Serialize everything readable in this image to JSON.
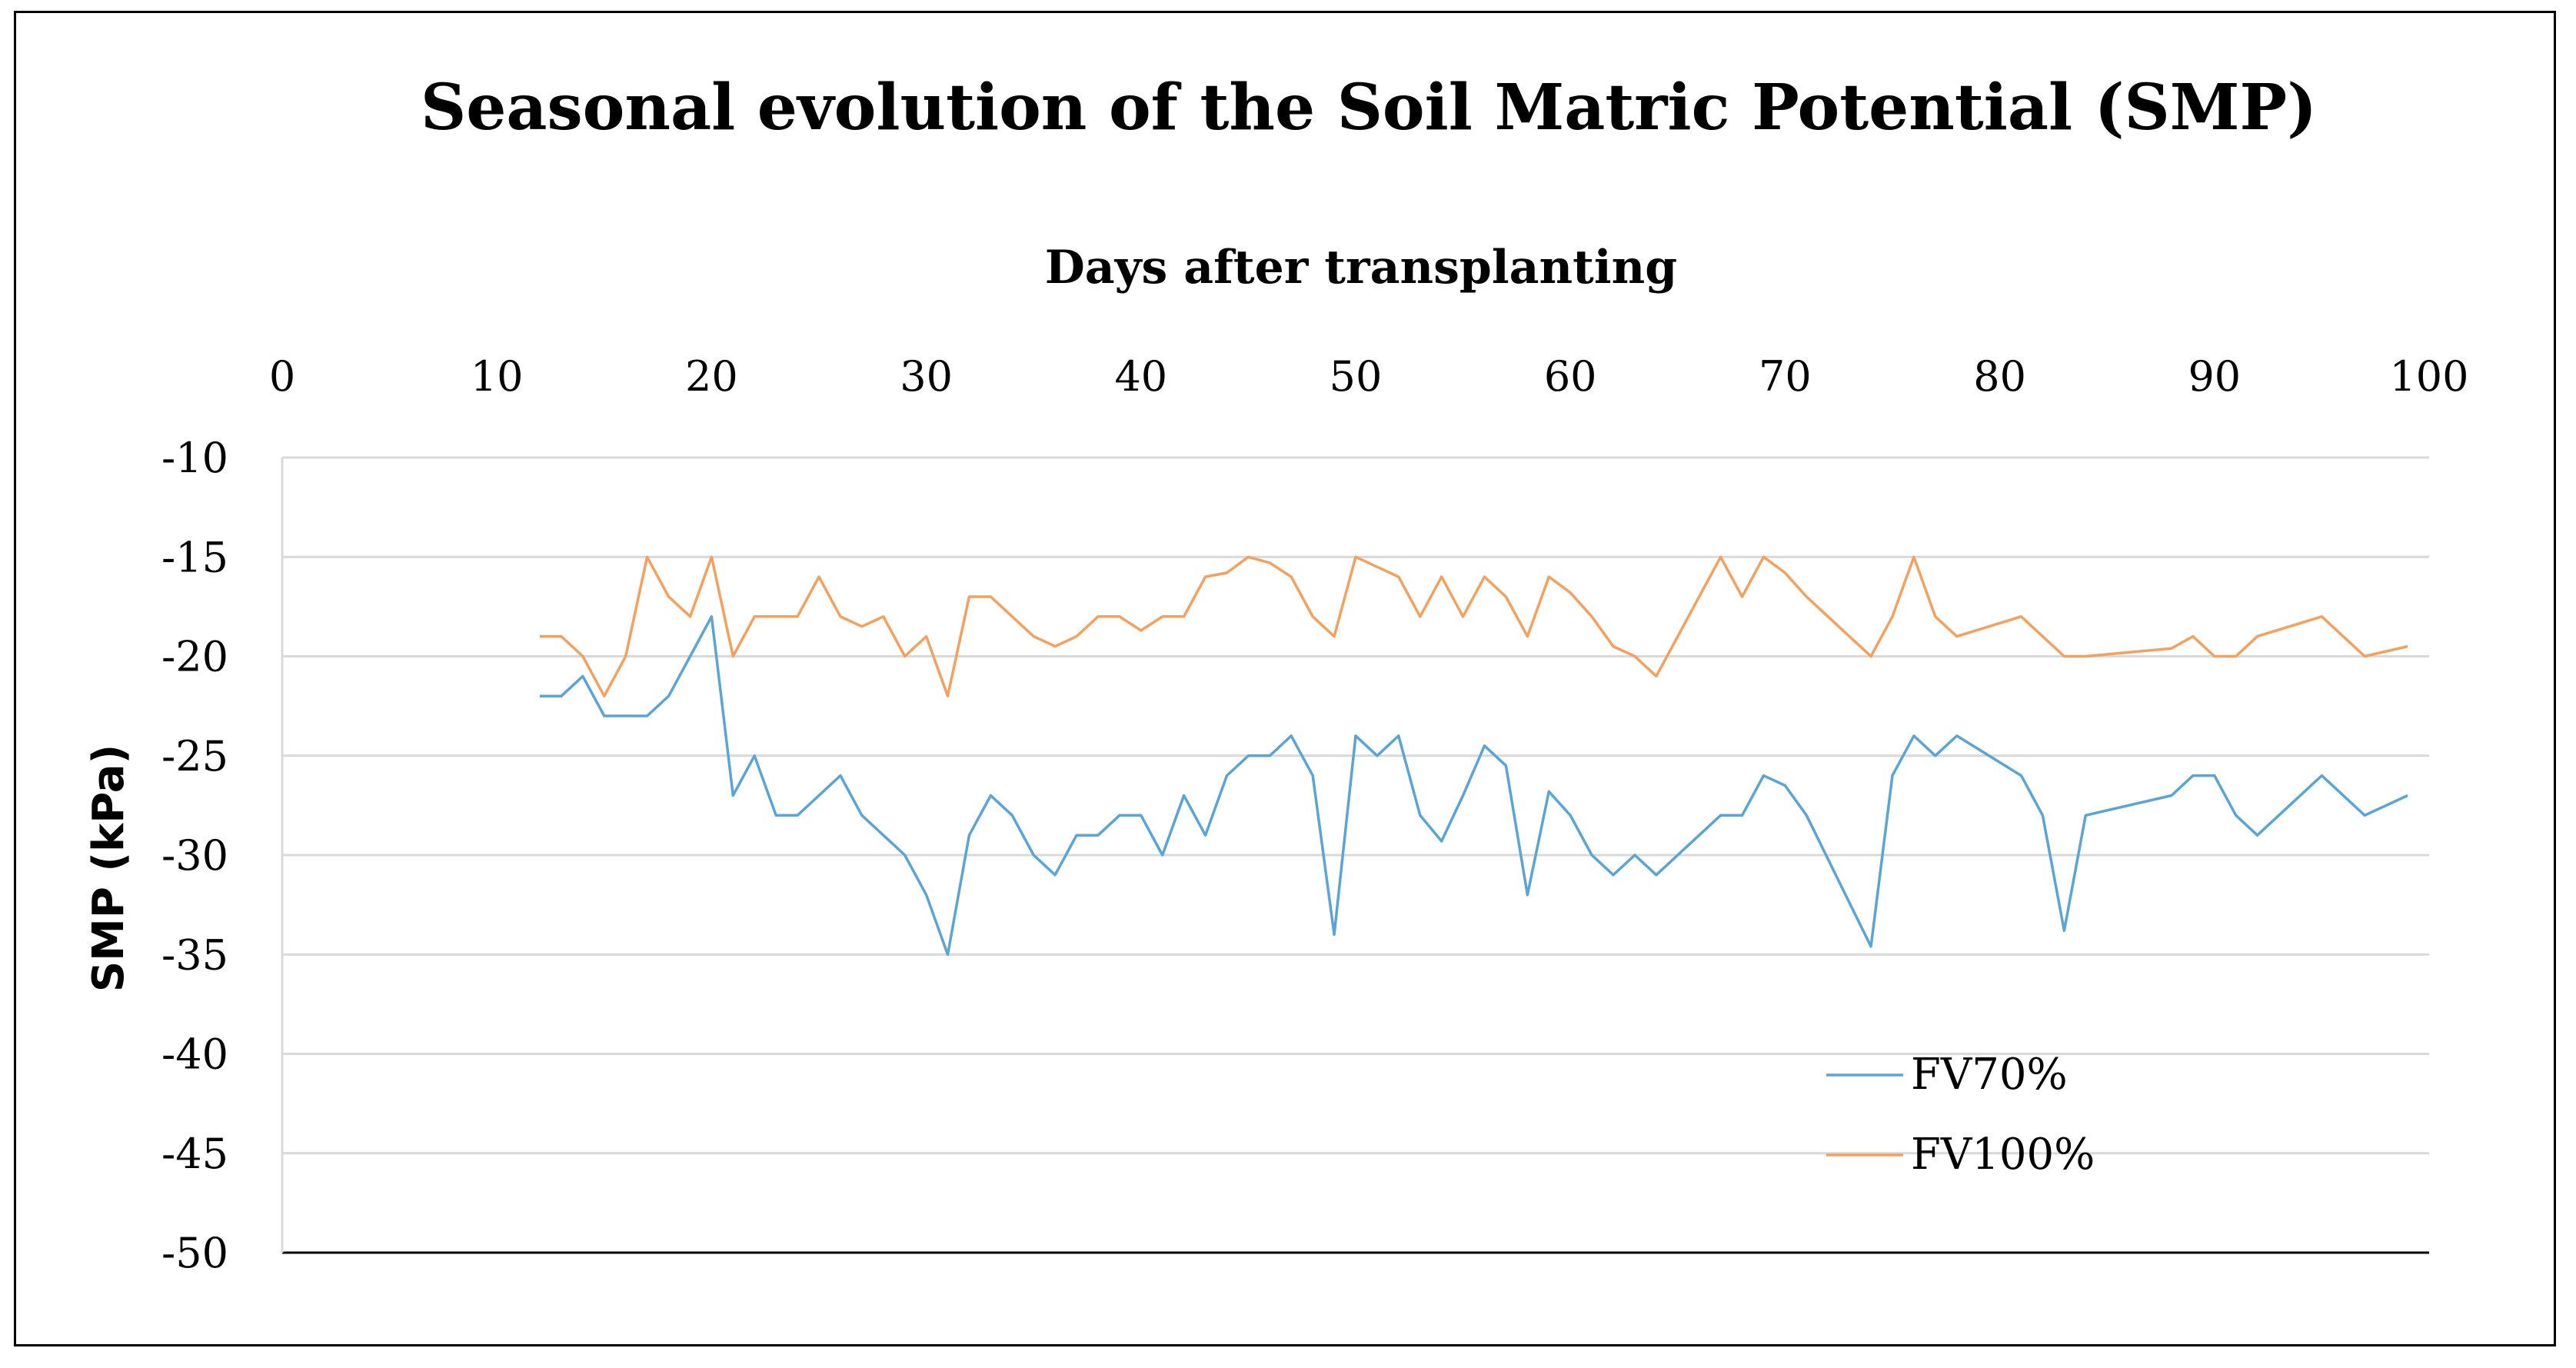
{
  "chart_data": {
    "type": "line",
    "title": "Seasonal evolution  of the Soil  Matric Potential  (SMP)",
    "xlabel": "Days after transplanting",
    "ylabel": "SMP (kPa)",
    "xlim": [
      0,
      100
    ],
    "ylim": [
      -50,
      -10
    ],
    "x_ticks": [
      "0",
      "10",
      "20",
      "30",
      "40",
      "50",
      "60",
      "70",
      "80",
      "90",
      "100"
    ],
    "y_ticks": [
      "-10",
      "-15",
      "-20",
      "-25",
      "-30",
      "-35",
      "-40",
      "-45",
      "-50"
    ],
    "grid": true,
    "legend_position": "bottom-right",
    "colors": {
      "FV70%": "#5BA4D6",
      "FV100%": "#F4A05E",
      "grid": "#D9D9D9",
      "axis": "#000000"
    },
    "series": [
      {
        "name": "FV70%",
        "x": [
          12,
          13,
          14,
          15,
          16,
          17,
          18,
          19,
          20,
          21,
          22,
          23,
          24,
          25,
          26,
          27,
          28,
          29,
          30,
          31,
          32,
          33,
          34,
          35,
          36,
          37,
          38,
          39,
          40,
          41,
          42,
          43,
          44,
          45,
          46,
          47,
          48,
          49,
          50,
          51,
          52,
          53,
          54,
          55,
          56,
          57,
          58,
          59,
          60,
          61,
          62,
          63,
          64,
          67,
          68,
          69,
          70,
          71,
          74,
          75,
          76,
          77,
          78,
          81,
          82,
          83,
          84,
          88,
          89,
          90,
          91,
          92,
          95,
          97,
          99
        ],
        "y": [
          -22,
          -22,
          -21,
          -23,
          -23,
          -23,
          -22,
          -20,
          -18,
          -27,
          -25,
          -28,
          -28,
          -27,
          -26,
          -28,
          -29,
          -30,
          -32,
          -35,
          -29,
          -27,
          -28,
          -30,
          -31,
          -29,
          -29,
          -28,
          -28,
          -30,
          -27,
          -29,
          -26,
          -25,
          -25,
          -24,
          -26,
          -34,
          -24,
          -25,
          -24,
          -28,
          -29.3,
          -27,
          -24.5,
          -25.5,
          -32,
          -26.8,
          -28,
          -30,
          -31,
          -30,
          -31,
          -28,
          -28,
          -26,
          -26.5,
          -28,
          -34.6,
          -26,
          -24,
          -25,
          -24,
          -26,
          -28,
          -33.8,
          -28,
          -27,
          -26,
          -26,
          -28,
          -29,
          -26,
          -28,
          -27
        ]
      },
      {
        "name": "FV100%",
        "x": [
          12,
          13,
          14,
          15,
          16,
          17,
          18,
          19,
          20,
          21,
          22,
          23,
          24,
          25,
          26,
          27,
          28,
          29,
          30,
          31,
          32,
          33,
          34,
          35,
          36,
          37,
          38,
          39,
          40,
          41,
          42,
          43,
          44,
          45,
          46,
          47,
          48,
          49,
          50,
          51,
          52,
          53,
          54,
          55,
          56,
          57,
          58,
          59,
          60,
          61,
          62,
          63,
          64,
          67,
          68,
          69,
          70,
          71,
          74,
          75,
          76,
          77,
          78,
          81,
          82,
          83,
          84,
          88,
          89,
          90,
          91,
          92,
          95,
          97,
          99
        ],
        "y": [
          -19,
          -19,
          -20,
          -22,
          -20,
          -15,
          -17,
          -18,
          -15,
          -20,
          -18,
          -18,
          -18,
          -16,
          -18,
          -18.5,
          -18,
          -20,
          -19,
          -22,
          -17,
          -17,
          -18,
          -19,
          -19.5,
          -19,
          -18,
          -18,
          -18.7,
          -18,
          -18,
          -16,
          -15.8,
          -15,
          -15.3,
          -16,
          -18,
          -19,
          -15,
          -15.5,
          -16,
          -18,
          -16,
          -18,
          -16,
          -17,
          -19,
          -16,
          -16.8,
          -18,
          -19.5,
          -20,
          -21,
          -15,
          -17,
          -15,
          -15.8,
          -17,
          -20,
          -18,
          -15,
          -18,
          -19,
          -18,
          -19,
          -20,
          -20,
          -19.6,
          -19,
          -20,
          -20,
          -19,
          -18,
          -20,
          -19.5
        ]
      }
    ]
  }
}
